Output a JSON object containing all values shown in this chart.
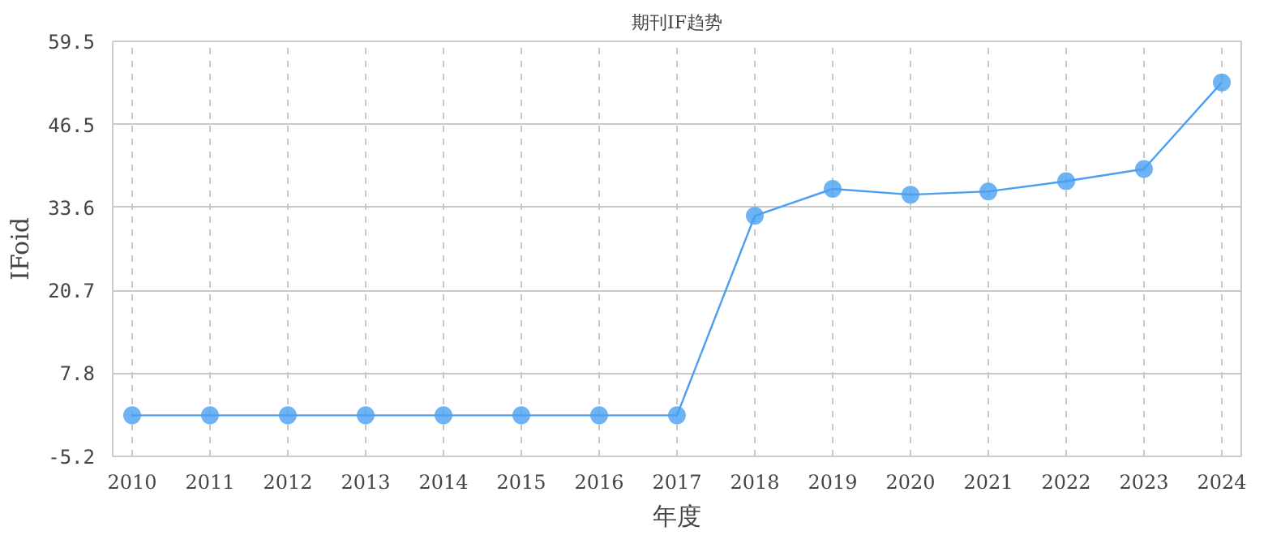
{
  "chart_data": {
    "type": "line",
    "title": "期刊IF趋势",
    "xlabel": "年度",
    "ylabel": "IFoid",
    "x": [
      2010,
      2011,
      2012,
      2013,
      2014,
      2015,
      2016,
      2017,
      2018,
      2019,
      2020,
      2021,
      2022,
      2023,
      2024
    ],
    "series": [
      {
        "color": "#4aa0f0",
        "values": [
          1.2,
          1.2,
          1.2,
          1.2,
          1.2,
          1.2,
          1.2,
          1.2,
          32.3,
          36.5,
          35.6,
          36.1,
          37.7,
          39.6,
          53.1
        ]
      }
    ],
    "xlim": [
      2009.75,
      2024.25
    ],
    "xticks": [
      2010,
      2011,
      2012,
      2013,
      2014,
      2015,
      2016,
      2017,
      2018,
      2019,
      2020,
      2021,
      2022,
      2023,
      2024
    ],
    "ylim": [
      -5.2,
      59.5
    ],
    "yticks": [
      -5.2,
      7.8,
      20.7,
      33.6,
      46.5,
      59.5
    ],
    "grid": true,
    "marker": "circle",
    "line_style": "solid"
  }
}
